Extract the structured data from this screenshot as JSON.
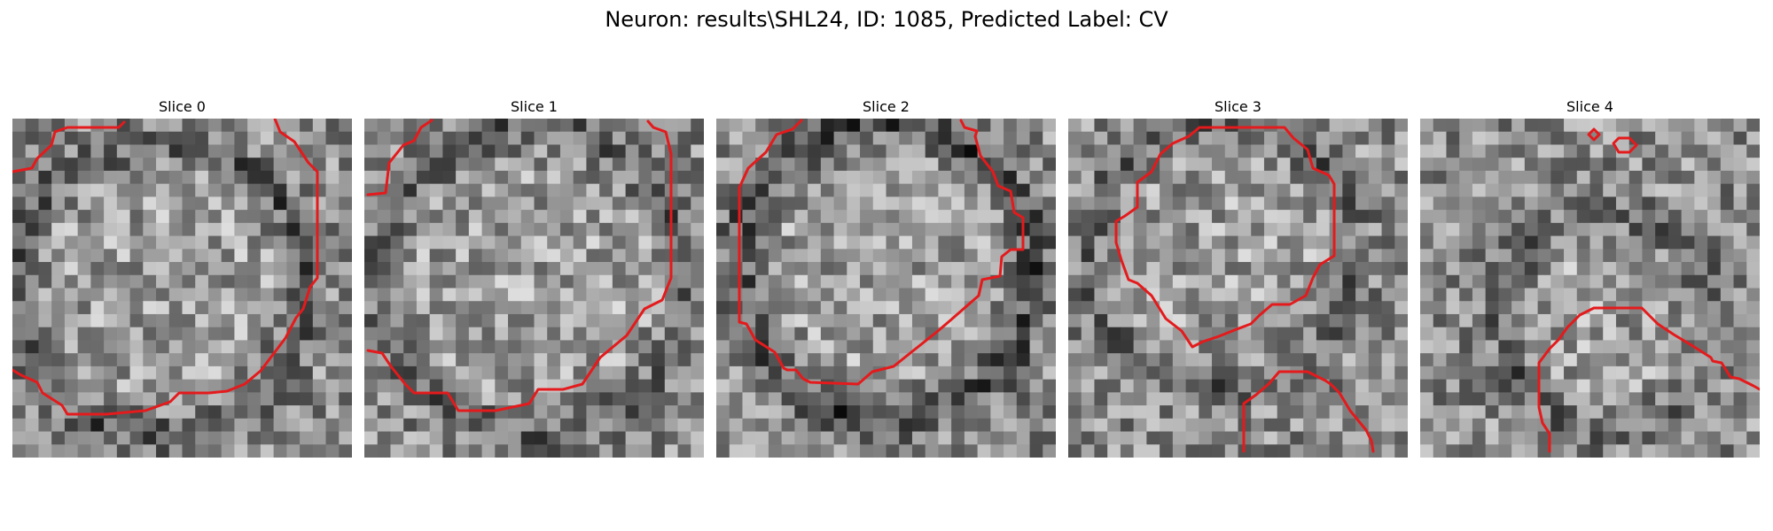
{
  "figure": {
    "title": "Neuron: results\\SHL24, ID: 1085, Predicted Label: CV"
  },
  "panels": [
    {
      "title": "Slice 0"
    },
    {
      "title": "Slice 1"
    },
    {
      "title": "Slice 2"
    },
    {
      "title": "Slice 3"
    },
    {
      "title": "Slice 4"
    }
  ],
  "contour_color": "#e41a1c"
}
